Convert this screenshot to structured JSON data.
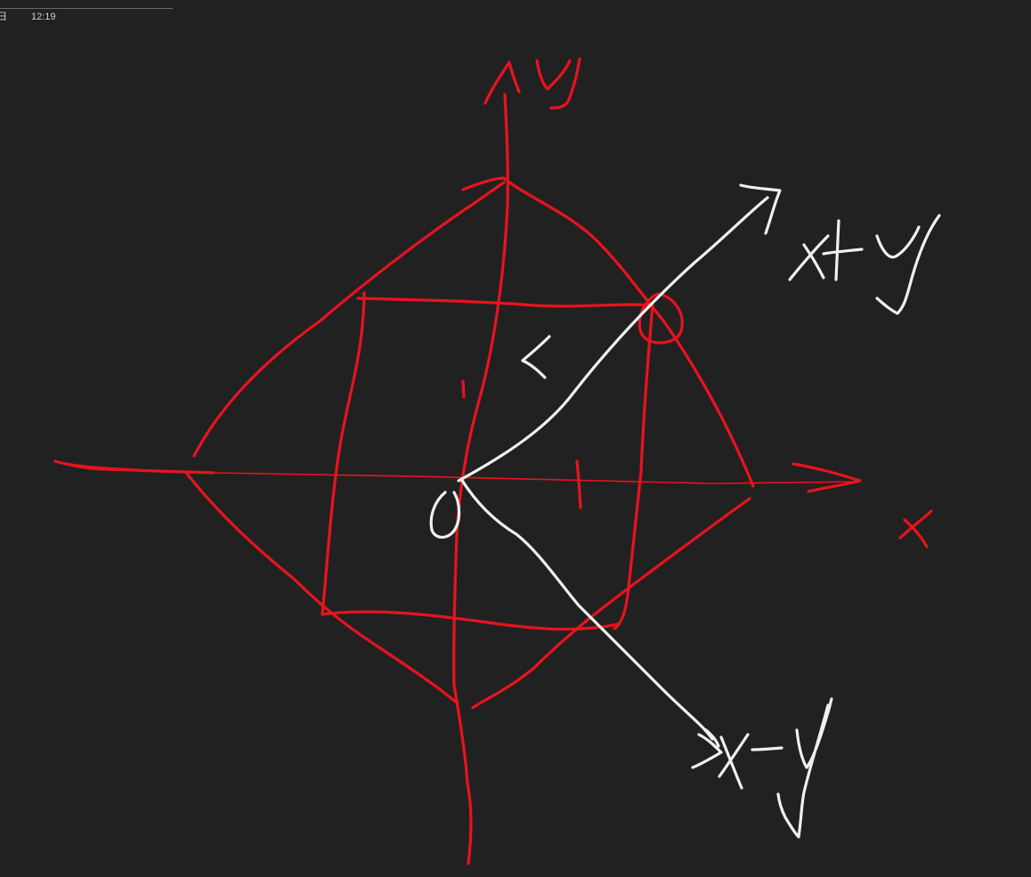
{
  "status_bar": {
    "date_glyph": "日",
    "time": "12:19"
  },
  "sketch": {
    "ink_colors": {
      "background": "#222121",
      "red": "#e8131f",
      "white": "#f0f0f0"
    }
  }
}
